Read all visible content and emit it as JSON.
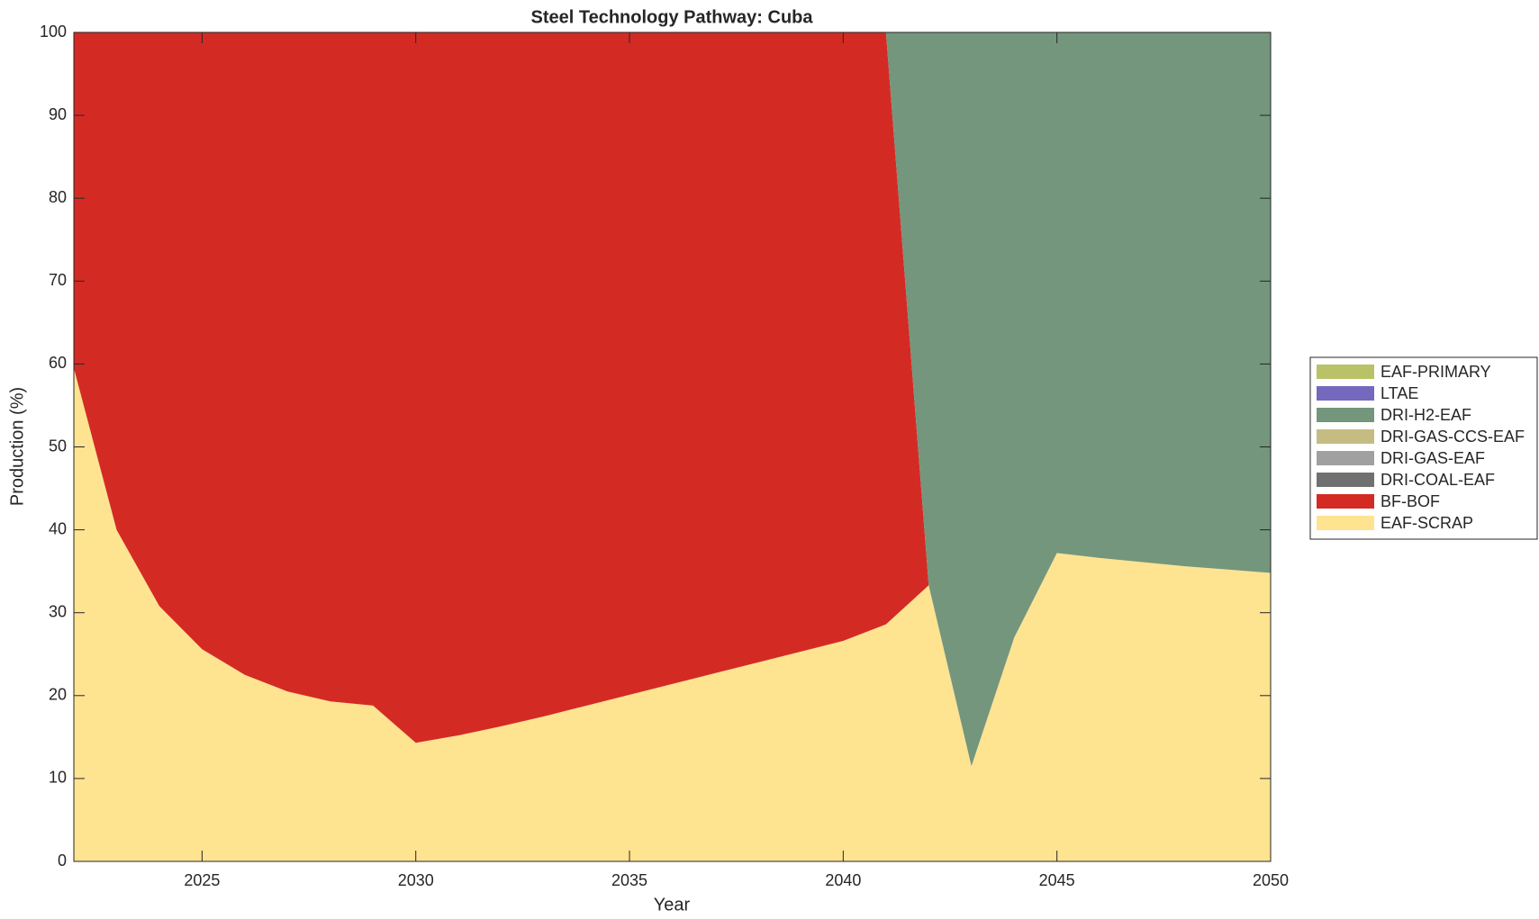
{
  "chart_data": {
    "type": "stacked_area",
    "title": "Steel Technology Pathway: Cuba",
    "x_label": "Year",
    "y_label": "Production (%)",
    "x": [
      2022,
      2023,
      2024,
      2025,
      2026,
      2027,
      2028,
      2029,
      2030,
      2031,
      2032,
      2033,
      2034,
      2035,
      2036,
      2037,
      2038,
      2039,
      2040,
      2041,
      2042,
      2043,
      2044,
      2045,
      2046,
      2047,
      2048,
      2049,
      2050
    ],
    "xlim": [
      2022,
      2050
    ],
    "xticks": [
      2025,
      2030,
      2035,
      2040,
      2045,
      2050
    ],
    "ylim": [
      0,
      100
    ],
    "yticks": [
      0,
      10,
      20,
      30,
      40,
      50,
      60,
      70,
      80,
      90,
      100
    ],
    "grid": false,
    "legend_position": "right",
    "series": [
      {
        "name": "EAF-SCRAP",
        "color": "#fee391",
        "values": [
          59.5,
          40,
          30.8,
          25.6,
          22.5,
          20.5,
          19.3,
          18.8,
          14.3,
          15.2,
          16.3,
          17.5,
          18.8,
          20.1,
          21.4,
          22.7,
          24.0,
          25.3,
          26.6,
          28.6,
          33.3,
          11.5,
          27.0,
          37.2,
          36.6,
          36.1,
          35.6,
          35.2,
          34.8
        ]
      },
      {
        "name": "BF-BOF",
        "color": "#d32b24",
        "values": [
          40.5,
          60,
          69.2,
          74.4,
          77.5,
          79.5,
          80.7,
          81.2,
          85.7,
          84.8,
          83.7,
          82.5,
          81.2,
          79.9,
          78.6,
          77.3,
          76.0,
          74.7,
          73.4,
          71.4,
          0,
          0,
          0,
          0,
          0,
          0,
          0,
          0,
          0
        ]
      },
      {
        "name": "DRI-COAL-EAF",
        "color": "#707070",
        "values": [
          0,
          0,
          0,
          0,
          0,
          0,
          0,
          0,
          0,
          0,
          0,
          0,
          0,
          0,
          0,
          0,
          0,
          0,
          0,
          0,
          0,
          0,
          0,
          0,
          0,
          0,
          0,
          0,
          0
        ]
      },
      {
        "name": "DRI-GAS-EAF",
        "color": "#a0a0a0",
        "values": [
          0,
          0,
          0,
          0,
          0,
          0,
          0,
          0,
          0,
          0,
          0,
          0,
          0,
          0,
          0,
          0,
          0,
          0,
          0,
          0,
          0,
          0,
          0,
          0,
          0,
          0,
          0,
          0,
          0
        ]
      },
      {
        "name": "DRI-GAS-CCS-EAF",
        "color": "#c4bc82",
        "values": [
          0,
          0,
          0,
          0,
          0,
          0,
          0,
          0,
          0,
          0,
          0,
          0,
          0,
          0,
          0,
          0,
          0,
          0,
          0,
          0,
          0,
          0,
          0,
          0,
          0,
          0,
          0,
          0,
          0
        ]
      },
      {
        "name": "DRI-H2-EAF",
        "color": "#74967c",
        "values": [
          0,
          0,
          0,
          0,
          0,
          0,
          0,
          0,
          0,
          0,
          0,
          0,
          0,
          0,
          0,
          0,
          0,
          0,
          0,
          0,
          66.7,
          88.5,
          73.0,
          62.8,
          63.4,
          63.9,
          64.4,
          64.8,
          65.2
        ]
      },
      {
        "name": "LTAE",
        "color": "#7469be",
        "values": [
          0,
          0,
          0,
          0,
          0,
          0,
          0,
          0,
          0,
          0,
          0,
          0,
          0,
          0,
          0,
          0,
          0,
          0,
          0,
          0,
          0,
          0,
          0,
          0,
          0,
          0,
          0,
          0,
          0
        ]
      },
      {
        "name": "EAF-PRIMARY",
        "color": "#b9c267",
        "values": [
          0,
          0,
          0,
          0,
          0,
          0,
          0,
          0,
          0,
          0,
          0,
          0,
          0,
          0,
          0,
          0,
          0,
          0,
          0,
          0,
          0,
          0,
          0,
          0,
          0,
          0,
          0,
          0,
          0
        ]
      }
    ]
  }
}
